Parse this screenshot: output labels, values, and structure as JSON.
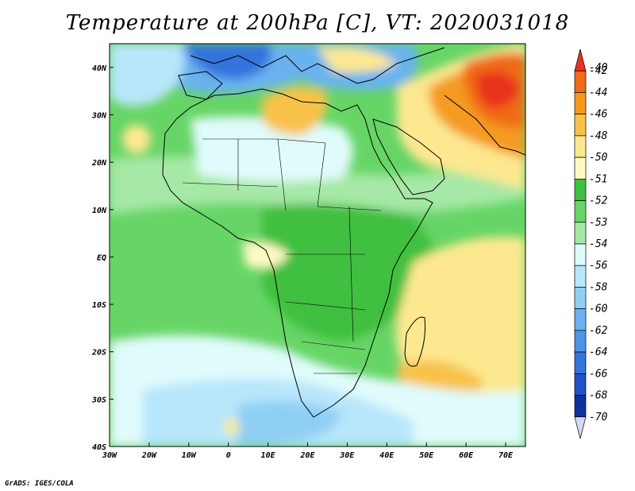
{
  "title": "Temperature at 200hPa [C], VT: 2020031018",
  "credit": "GrADS: IGES/COLA",
  "map": {
    "lon_range": [
      -30,
      75
    ],
    "lat_range": [
      -40,
      45
    ],
    "x_ticks": [
      "30W",
      "20W",
      "10W",
      "0",
      "10E",
      "20E",
      "30E",
      "40E",
      "50E",
      "60E",
      "70E"
    ],
    "x_tick_values": [
      -30,
      -20,
      -10,
      0,
      10,
      20,
      30,
      40,
      50,
      60,
      70
    ],
    "y_ticks": [
      "40N",
      "30N",
      "20N",
      "10N",
      "EQ",
      "10S",
      "20S",
      "30S",
      "40S"
    ],
    "y_tick_values": [
      40,
      30,
      20,
      10,
      0,
      -10,
      -20,
      -30,
      -40
    ],
    "background_color": "#66d566"
  },
  "colorbar": {
    "labels": [
      "-40",
      "-42",
      "-44",
      "-46",
      "-48",
      "-50",
      "-51",
      "-52",
      "-53",
      "-54",
      "-56",
      "-58",
      "-60",
      "-62",
      "-64",
      "-66",
      "-68",
      "-70"
    ],
    "colors": [
      "#e8321e",
      "#f06a18",
      "#f59a20",
      "#f8c24a",
      "#fde890",
      "#fffac4",
      "#3fbf3f",
      "#66d566",
      "#a6e8a6",
      "#e0fbfb",
      "#b8e6fb",
      "#90cff5",
      "#69b2ef",
      "#4d94e8",
      "#3373dc",
      "#2151c8",
      "#102f9e",
      "#d7d7f7"
    ]
  },
  "regions": [
    {
      "name": "warm-sahara-north",
      "color": "#f8c24a"
    },
    {
      "name": "hot-middle-east",
      "color": "#e8321e"
    },
    {
      "name": "cold-europe",
      "color": "#4d94e8"
    },
    {
      "name": "cold-south-atlantic",
      "color": "#90cff5"
    },
    {
      "name": "warm-indian-ocean",
      "color": "#fde890"
    }
  ]
}
